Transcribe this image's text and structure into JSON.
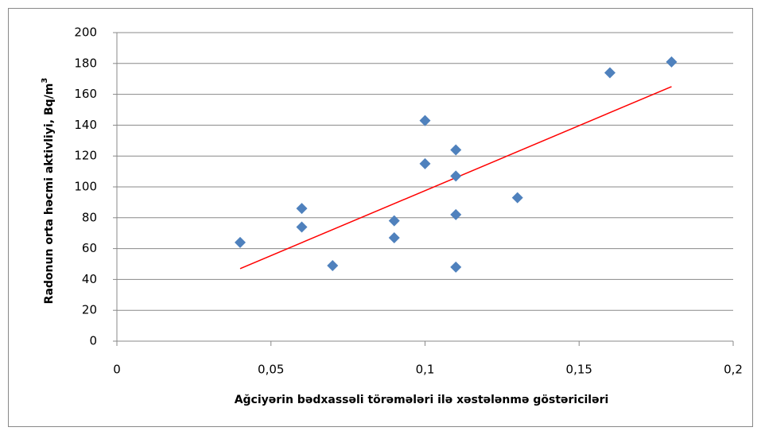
{
  "chart_data": {
    "type": "scatter",
    "xlabel": "Ağciyərin bədxassəli törəmələri ilə xəstələnmə göstəriciləri",
    "ylabel": "Radonun orta həcmi aktivliyi,  Bq/m",
    "ylabel_superscript": "3",
    "x": [
      0.04,
      0.06,
      0.06,
      0.07,
      0.09,
      0.09,
      0.1,
      0.1,
      0.11,
      0.11,
      0.11,
      0.11,
      0.13,
      0.16,
      0.18
    ],
    "values": [
      64,
      86,
      74,
      49,
      78,
      67,
      143,
      115,
      124,
      107,
      82,
      48,
      93,
      174,
      181
    ],
    "color": "#4f81bd",
    "trendline": {
      "x": [
        0.04,
        0.18
      ],
      "values": [
        47,
        165
      ],
      "color": "#ff0000"
    },
    "xlim": [
      0,
      0.2
    ],
    "xticks": [
      0,
      {
        "value": 0.05,
        "label": "0,05"
      },
      {
        "value": 0.1,
        "label": "0,1"
      },
      {
        "value": 0.15,
        "label": "0,15"
      },
      {
        "value": 0.2,
        "label": "0,2"
      }
    ],
    "ylim": [
      0,
      200
    ],
    "yticks": [
      0,
      20,
      40,
      60,
      80,
      100,
      120,
      140,
      160,
      180,
      200
    ],
    "grid": true
  }
}
